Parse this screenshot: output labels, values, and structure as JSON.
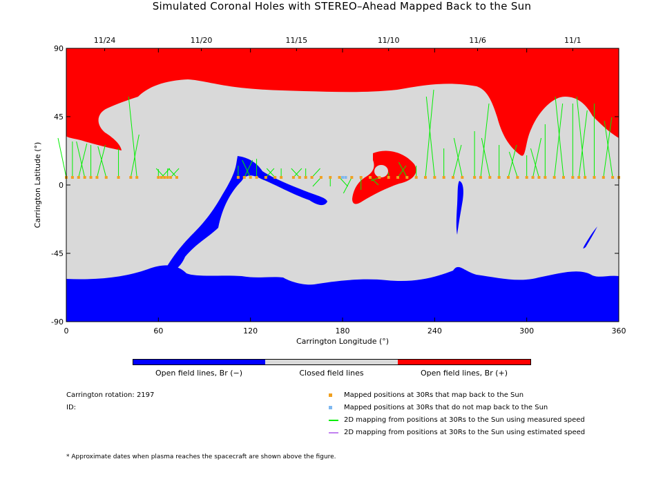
{
  "chart_data": {
    "type": "map",
    "title": "Simulated Coronal Holes with STEREO–Ahead Mapped Back to the Sun",
    "xlabel": "Carrington Longitude (°)",
    "ylabel": "Carrington Latitude (°)",
    "xlim": [
      0,
      360
    ],
    "ylim": [
      -90,
      90
    ],
    "xticks": [
      "0",
      "60",
      "120",
      "180",
      "240",
      "300",
      "360"
    ],
    "yticks": [
      "90",
      "45",
      "0",
      "-45",
      "-90"
    ],
    "top_axis_dates": [
      {
        "label": "11/24",
        "lon": 25
      },
      {
        "label": "11/20",
        "lon": 88
      },
      {
        "label": "11/15",
        "lon": 150
      },
      {
        "label": "11/10",
        "lon": 210
      },
      {
        "label": "11/6",
        "lon": 268
      },
      {
        "label": "11/1",
        "lon": 330
      }
    ],
    "mapped_latitude": 5,
    "mapped_longitudes": [
      0,
      4,
      8,
      12,
      16,
      20,
      26,
      34,
      42,
      46,
      60,
      62,
      64,
      66,
      68,
      72,
      112,
      116,
      120,
      124,
      130,
      136,
      140,
      148,
      152,
      156,
      160,
      166,
      172,
      178,
      186,
      192,
      198,
      204,
      210,
      216,
      222,
      228,
      234,
      240,
      246,
      252,
      258,
      266,
      270,
      276,
      282,
      288,
      294,
      300,
      304,
      308,
      312,
      318,
      324,
      330,
      334,
      338,
      344,
      350,
      356,
      360
    ],
    "unmapped_longitudes": [
      180,
      182
    ],
    "colors": {
      "open_negative": "#0000ff",
      "closed": "#d9d9d9",
      "open_positive": "#ff0000",
      "mapped": "#f0a020",
      "unmapped": "#7fb8f0",
      "measured": "#00ee00",
      "estimated": "#c080f0"
    }
  },
  "colorbar": {
    "neg_label": "Open field lines, Br (−)",
    "closed_label": "Closed field lines",
    "pos_label": "Open field lines, Br (+)"
  },
  "info": {
    "rotation": "Carrington rotation: 2197",
    "id": "ID:"
  },
  "legend": [
    {
      "label": "Mapped positions at 30Rs that map back to the Sun",
      "kind": "square",
      "color": "#f0a020"
    },
    {
      "label": "Mapped positions at 30Rs that do not map back to the Sun",
      "kind": "square",
      "color": "#7fb8f0"
    },
    {
      "label": "2D mapping from positions at 30Rs to the Sun using measured speed",
      "kind": "line",
      "color": "#00ee00"
    },
    {
      "label": "2D mapping from positions at 30Rs to the Sun using estimated speed",
      "kind": "line",
      "color": "#c080f0"
    }
  ],
  "footnote": "* Approximate dates when plasma reaches the spacecraft are shown above the figure."
}
